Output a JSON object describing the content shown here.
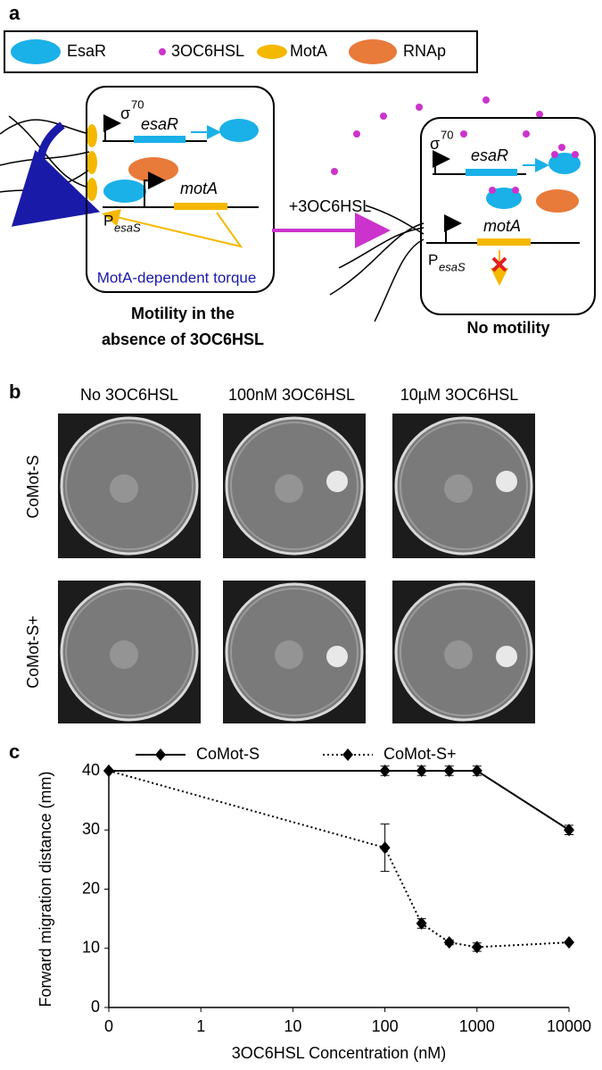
{
  "panel_a": {
    "label": "a",
    "legend": [
      "EsaR",
      "3OC6HSL",
      "MotA",
      "RNAp"
    ],
    "left": {
      "sigma": "σ",
      "sigma_sup": "70",
      "gene1": "esaR",
      "gene2": "motA",
      "promoter": "P",
      "promoter_sub": "esaS",
      "torque": "MotA-dependent torque",
      "caption": [
        "Motility in the",
        "absence of 3OC6HSL"
      ]
    },
    "arrow": "+3OC6HSL",
    "right": {
      "sigma": "σ",
      "sigma_sup": "70",
      "gene1": "esaR",
      "gene2": "motA",
      "promoter": "P",
      "promoter_sub": "esaS",
      "caption": [
        "No motility"
      ]
    }
  },
  "panel_b": {
    "label": "b",
    "columns": [
      "No 3OC6HSL",
      "100nM 3OC6HSL",
      "10µM 3OC6HSL"
    ],
    "rows": [
      "CoMot-S",
      "CoMot-S+"
    ]
  },
  "chart_data": {
    "type": "line",
    "label": "c",
    "x_label": "3OC6HSL Concentration (nM)",
    "y_label": "Forward migration distance (mm)",
    "xscale": "log",
    "xlim": [
      0,
      10000
    ],
    "xticks": [
      0,
      1,
      10,
      100,
      1000,
      10000
    ],
    "ylim": [
      0,
      40
    ],
    "yticks": [
      0,
      10,
      20,
      30,
      40
    ],
    "series": [
      {
        "name": "CoMot-S",
        "color": "#000000",
        "dash": "solid",
        "x": [
          0,
          100,
          250,
          500,
          1000,
          10000
        ],
        "values": [
          40,
          40,
          40,
          40,
          40,
          30
        ],
        "errors": [
          0,
          0.8,
          0.8,
          0.8,
          0.8,
          0.8
        ]
      },
      {
        "name": "CoMot-S+",
        "color": "#000000",
        "dash": "dotted",
        "x": [
          0,
          100,
          250,
          500,
          1000,
          10000
        ],
        "values": [
          40,
          27,
          14.2,
          11,
          10.2,
          11
        ],
        "errors": [
          0,
          4,
          0.8,
          0.4,
          0.7,
          0
        ]
      }
    ]
  }
}
